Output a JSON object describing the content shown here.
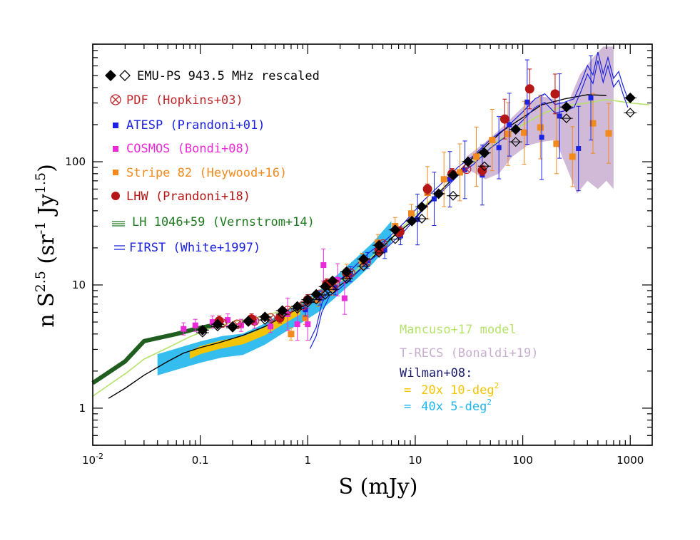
{
  "chart_data": {
    "type": "scatter",
    "xscale": "log",
    "yscale": "log",
    "xlim": [
      0.01,
      1600
    ],
    "ylim": [
      0.5,
      900
    ],
    "xlabel_parts": [
      "S (mJy)"
    ],
    "ylabel_parts": [
      "n S",
      "2.5",
      " (sr",
      "-1",
      " Jy",
      "1.5",
      ")"
    ],
    "x_tick_labels": [
      {
        "value": 0.01,
        "base": "10",
        "exp": "-2"
      },
      {
        "value": 0.1,
        "text": "0.1"
      },
      {
        "value": 1,
        "text": "1"
      },
      {
        "value": 10,
        "text": "10"
      },
      {
        "value": 100,
        "text": "100"
      },
      {
        "value": 1000,
        "text": "1000"
      }
    ],
    "y_tick_labels": [
      {
        "value": 1,
        "text": "1"
      },
      {
        "value": 10,
        "text": "10"
      },
      {
        "value": 100,
        "text": "100"
      }
    ],
    "legend": [
      {
        "key": "emu",
        "marker": "diamond-pair",
        "text": "EMU-PS 943.5 MHz rescaled",
        "color": "#000000"
      },
      {
        "key": "pdf",
        "marker": "circle-cross",
        "text": "PDF (Hopkins+03)",
        "color": "#c0282d"
      },
      {
        "key": "atesp",
        "marker": "square",
        "text": "ATESP (Prandoni+01)",
        "color": "#1b22e0"
      },
      {
        "key": "cosmos",
        "marker": "square",
        "text": "COSMOS (Bondi+08)",
        "color": "#ea2ad8"
      },
      {
        "key": "stripe82",
        "marker": "square",
        "text": "Stripe 82 (Heywood+16)",
        "color": "#f28a1e"
      },
      {
        "key": "lhw",
        "marker": "circle",
        "text": "LHW (Prandoni+18)",
        "color": "#b51616"
      },
      {
        "key": "lh1046",
        "marker": "hatch",
        "text": "LH 1046+59 (Vernstrom+14)",
        "color": "#1f7a1f"
      },
      {
        "key": "first",
        "marker": "lines",
        "text": "FIRST (White+1997)",
        "color": "#1b22e0"
      }
    ],
    "models_legend": [
      {
        "text": "Mancuso+17 model",
        "color": "#b5e36b"
      },
      {
        "text": "T-RECS (Bonaldi+19)",
        "color": "#c9aed0"
      },
      {
        "text": "Wilman+08:",
        "color": "#1a1a6e"
      },
      {
        "marker": "=",
        "text": "20x 10-deg",
        "sup": "2",
        "color": "#f5c400"
      },
      {
        "marker": "=",
        "text": "40x  5-deg",
        "sup": "2",
        "color": "#1fb6ee"
      }
    ],
    "series": {
      "emu_filled": [
        [
          0.105,
          4.3
        ],
        [
          0.145,
          4.8
        ],
        [
          0.2,
          4.6
        ],
        [
          0.28,
          5.1
        ],
        [
          0.4,
          5.5
        ],
        [
          0.58,
          6.2
        ],
        [
          0.8,
          6.7
        ],
        [
          1.0,
          7.6
        ],
        [
          1.2,
          8.4
        ],
        [
          1.45,
          9.7
        ],
        [
          1.7,
          10.8
        ],
        [
          2.3,
          12.8
        ],
        [
          3.3,
          16.2
        ],
        [
          4.6,
          21
        ],
        [
          6.5,
          28
        ],
        [
          9.3,
          33
        ],
        [
          11.5,
          43
        ],
        [
          16.5,
          55
        ],
        [
          22.5,
          78
        ],
        [
          31,
          100
        ],
        [
          44,
          118
        ],
        [
          86,
          183
        ],
        [
          255,
          278
        ],
        [
          1000,
          330
        ]
      ],
      "emu_open": [
        [
          0.105,
          4.1
        ],
        [
          0.145,
          4.6
        ],
        [
          0.2,
          4.5
        ],
        [
          0.28,
          5.0
        ],
        [
          0.4,
          5.2
        ],
        [
          0.58,
          5.8
        ],
        [
          0.8,
          6.4
        ],
        [
          1.0,
          7.2
        ],
        [
          1.2,
          7.6
        ],
        [
          1.45,
          8.3
        ],
        [
          1.7,
          9.2
        ],
        [
          2.3,
          11.2
        ],
        [
          3.3,
          14.2
        ],
        [
          4.6,
          18.2
        ],
        [
          6.5,
          23.5
        ],
        [
          11.5,
          34.5
        ],
        [
          22.5,
          53
        ],
        [
          44,
          92
        ],
        [
          86,
          145
        ],
        [
          255,
          225
        ],
        [
          1000,
          250
        ]
      ],
      "pdf": [
        [
          0.16,
          4.9
        ],
        [
          0.22,
          4.8
        ],
        [
          0.32,
          5.1
        ],
        [
          0.45,
          5.4
        ],
        [
          0.65,
          6.2
        ],
        [
          0.9,
          6.8
        ],
        [
          1.3,
          8.4
        ],
        [
          1.8,
          10.2
        ],
        [
          2.5,
          12.5
        ],
        [
          3.5,
          15.3
        ],
        [
          5.0,
          21.5
        ],
        [
          7.0,
          27
        ],
        [
          30,
          87
        ]
      ],
      "atesp": [
        [
          0.95,
          6.3
        ],
        [
          1.3,
          7.8
        ],
        [
          1.8,
          9.5
        ],
        [
          2.5,
          12.2
        ],
        [
          3.6,
          15.8
        ],
        [
          5.2,
          19.2
        ],
        [
          7.3,
          25
        ],
        [
          10.5,
          34
        ],
        [
          15,
          50
        ],
        [
          21,
          72
        ],
        [
          29,
          86
        ],
        [
          42,
          78
        ],
        [
          60,
          130
        ],
        [
          75,
          200
        ],
        [
          110,
          305
        ],
        [
          150,
          158
        ],
        [
          220,
          235
        ],
        [
          330,
          128
        ],
        [
          430,
          330
        ]
      ],
      "cosmos": [
        [
          0.07,
          4.4
        ],
        [
          0.09,
          4.7
        ],
        [
          0.13,
          5.0
        ],
        [
          0.18,
          5.2
        ],
        [
          0.24,
          4.7
        ],
        [
          0.32,
          5.0
        ],
        [
          0.45,
          4.6
        ],
        [
          0.65,
          5.8
        ],
        [
          0.8,
          4.8
        ],
        [
          1.0,
          4.8
        ],
        [
          1.4,
          14.5
        ],
        [
          1.9,
          11
        ],
        [
          2.2,
          7.8
        ]
      ],
      "stripe82": [
        [
          0.7,
          4.0
        ],
        [
          0.95,
          5.4
        ],
        [
          1.25,
          7.6
        ],
        [
          1.7,
          9.4
        ],
        [
          2.3,
          12.8
        ],
        [
          3.2,
          15.6
        ],
        [
          4.5,
          22
        ],
        [
          6.5,
          30
        ],
        [
          9.2,
          38
        ],
        [
          13,
          56
        ],
        [
          18.5,
          72
        ],
        [
          26,
          82
        ],
        [
          37,
          110
        ],
        [
          52,
          150
        ],
        [
          73,
          168
        ],
        [
          103,
          172
        ],
        [
          146,
          190
        ],
        [
          206,
          140
        ],
        [
          290,
          110
        ],
        [
          450,
          205
        ],
        [
          630,
          170
        ]
      ],
      "lhw": [
        [
          0.15,
          5.1
        ],
        [
          0.3,
          5.3
        ],
        [
          0.55,
          5.4
        ],
        [
          1.0,
          7.6
        ],
        [
          1.5,
          10.2
        ],
        [
          2.3,
          12.5
        ],
        [
          4.6,
          19
        ],
        [
          7.2,
          27
        ],
        [
          13,
          60
        ],
        [
          22,
          80
        ],
        [
          42,
          85
        ],
        [
          68,
          222
        ],
        [
          116,
          390
        ],
        [
          200,
          355
        ]
      ]
    },
    "model_curves": {
      "first": [
        [
          1.05,
          3.3
        ],
        [
          1.2,
          4.2
        ],
        [
          1.35,
          6.5
        ],
        [
          1.6,
          8.9
        ],
        [
          2.0,
          10.2
        ],
        [
          2.7,
          13
        ],
        [
          3.8,
          17.2
        ],
        [
          5.5,
          22
        ],
        [
          8,
          30
        ],
        [
          12,
          45
        ],
        [
          18,
          63
        ],
        [
          25,
          84
        ],
        [
          35,
          104
        ],
        [
          50,
          140
        ],
        [
          70,
          175
        ],
        [
          100,
          235
        ],
        [
          130,
          300
        ],
        [
          160,
          330
        ],
        [
          200,
          270
        ],
        [
          240,
          280
        ],
        [
          300,
          300
        ],
        [
          350,
          410
        ],
        [
          400,
          560
        ],
        [
          450,
          470
        ],
        [
          500,
          720
        ],
        [
          560,
          480
        ],
        [
          620,
          650
        ],
        [
          700,
          440
        ],
        [
          780,
          500
        ],
        [
          860,
          380
        ],
        [
          950,
          300
        ]
      ],
      "wilman": [
        [
          0.014,
          1.2
        ],
        [
          0.02,
          1.45
        ],
        [
          0.03,
          1.85
        ],
        [
          0.05,
          2.4
        ],
        [
          0.07,
          2.8
        ],
        [
          0.1,
          3.1
        ],
        [
          0.15,
          3.4
        ],
        [
          0.25,
          3.9
        ],
        [
          0.4,
          4.6
        ],
        [
          0.6,
          5.6
        ],
        [
          0.9,
          6.7
        ],
        [
          1.3,
          7.8
        ],
        [
          1.9,
          9.6
        ],
        [
          2.8,
          12.4
        ],
        [
          4,
          16.6
        ],
        [
          6,
          24
        ],
        [
          9,
          32
        ],
        [
          13,
          45
        ],
        [
          20,
          66
        ],
        [
          30,
          97
        ],
        [
          45,
          133
        ],
        [
          65,
          178
        ],
        [
          100,
          228
        ],
        [
          150,
          290
        ],
        [
          250,
          325
        ],
        [
          400,
          350
        ],
        [
          600,
          345
        ]
      ],
      "mancuso": [
        [
          0.01,
          1.25
        ],
        [
          0.015,
          1.6
        ],
        [
          0.02,
          1.9
        ],
        [
          0.03,
          2.5
        ],
        [
          0.05,
          3.1
        ],
        [
          0.08,
          3.8
        ],
        [
          0.12,
          4.4
        ],
        [
          0.2,
          5.0
        ],
        [
          0.35,
          5.5
        ],
        [
          0.6,
          6.2
        ],
        [
          1.0,
          7.5
        ],
        [
          1.6,
          9.5
        ],
        [
          2.5,
          12
        ],
        [
          4,
          17
        ],
        [
          6,
          24
        ],
        [
          10,
          37
        ],
        [
          16,
          55
        ],
        [
          25,
          80
        ],
        [
          40,
          110
        ],
        [
          60,
          150
        ],
        [
          100,
          200
        ],
        [
          160,
          250
        ],
        [
          250,
          285
        ],
        [
          400,
          300
        ],
        [
          600,
          320
        ],
        [
          1000,
          300
        ],
        [
          1500,
          290
        ]
      ],
      "lh1046": [
        [
          0.01,
          1.6
        ],
        [
          0.02,
          2.4
        ],
        [
          0.03,
          3.5
        ],
        [
          0.06,
          4.0
        ],
        [
          0.09,
          4.4
        ],
        [
          0.13,
          4.7
        ]
      ],
      "wilman20": [
        [
          0.08,
          2.7
        ],
        [
          0.1,
          2.95
        ],
        [
          0.15,
          3.25
        ],
        [
          0.25,
          3.55
        ],
        [
          0.4,
          4.2
        ],
        [
          0.6,
          5.2
        ],
        [
          0.85,
          6.2
        ]
      ],
      "wilman40": [
        [
          0.04,
          2.25
        ],
        [
          0.06,
          2.5
        ],
        [
          0.1,
          2.85
        ],
        [
          0.16,
          3.15
        ],
        [
          0.25,
          3.3
        ],
        [
          0.4,
          4.0
        ],
        [
          0.6,
          5.0
        ],
        [
          0.9,
          6.1
        ],
        [
          1.3,
          7.5
        ],
        [
          1.9,
          10
        ],
        [
          2.8,
          13.5
        ],
        [
          4,
          18
        ],
        [
          6,
          27
        ]
      ]
    }
  }
}
